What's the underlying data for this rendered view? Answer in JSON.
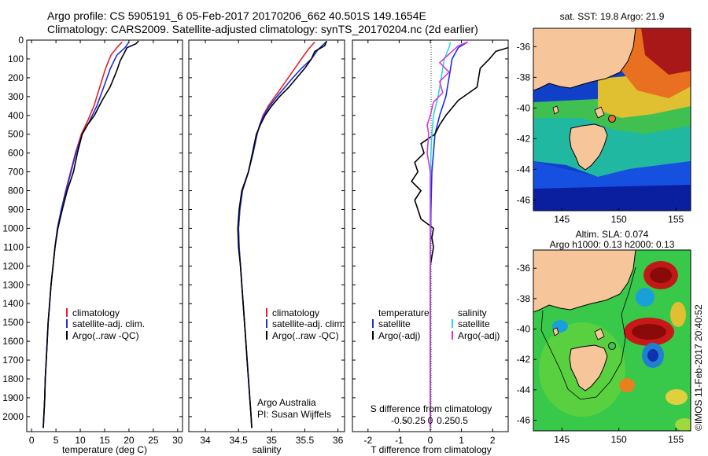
{
  "title_line1": "Argo profile: CS 5905191_6 05-Feb-2017 20170206_662 40.501S 149.1654E",
  "title_line2": "Climatology: CARS2009. Satellite-adjusted climatology: synTS_20170204.nc (2d earlier)",
  "colors": {
    "climatology": "#e8202a",
    "satellite": "#1a2fe0",
    "argo": "#000000",
    "salinity_sat": "#22dede",
    "salinity_argo": "#e030e0"
  },
  "chart_data": [
    {
      "type": "line",
      "name": "temperature-profile",
      "xlabel": "temperature (deg C)",
      "xlim": [
        -1,
        31
      ],
      "ylim": [
        0,
        2080
      ],
      "xticks": [
        0,
        5,
        10,
        15,
        20,
        25,
        30
      ],
      "yticks": [
        0,
        100,
        200,
        300,
        400,
        500,
        600,
        700,
        800,
        900,
        1000,
        1100,
        1200,
        1300,
        1400,
        1500,
        1600,
        1700,
        1800,
        1900,
        2000
      ],
      "legend": [
        "climatology",
        "satellite-adj. clim.",
        "Argo(..raw -QC)"
      ],
      "series": [
        {
          "name": "climatology",
          "color_key": "climatology",
          "points": [
            [
              18.6,
              10
            ],
            [
              17.5,
              40
            ],
            [
              16.3,
              80
            ],
            [
              15.2,
              150
            ],
            [
              14.0,
              250
            ],
            [
              12.8,
              350
            ],
            [
              11.5,
              430
            ],
            [
              10.2,
              500
            ],
            [
              9.0,
              600
            ],
            [
              8.0,
              700
            ],
            [
              7.0,
              800
            ],
            [
              6.1,
              900
            ],
            [
              5.3,
              1000
            ],
            [
              4.8,
              1100
            ],
            [
              4.4,
              1200
            ],
            [
              4.0,
              1300
            ],
            [
              3.7,
              1400
            ],
            [
              3.4,
              1500
            ],
            [
              3.2,
              1600
            ],
            [
              3.0,
              1700
            ],
            [
              2.8,
              1800
            ],
            [
              2.7,
              1900
            ],
            [
              2.5,
              2000
            ],
            [
              2.4,
              2060
            ]
          ]
        },
        {
          "name": "satellite",
          "color_key": "satellite",
          "points": [
            [
              20.0,
              10
            ],
            [
              19.2,
              40
            ],
            [
              17.5,
              80
            ],
            [
              16.2,
              150
            ],
            [
              14.8,
              250
            ],
            [
              13.4,
              350
            ],
            [
              11.9,
              430
            ],
            [
              10.4,
              500
            ],
            [
              9.1,
              600
            ],
            [
              8.1,
              700
            ],
            [
              7.1,
              800
            ],
            [
              6.1,
              900
            ],
            [
              5.3,
              1000
            ],
            [
              4.8,
              1100
            ],
            [
              4.4,
              1200
            ],
            [
              4.0,
              1300
            ],
            [
              3.7,
              1400
            ],
            [
              3.4,
              1500
            ],
            [
              3.2,
              1600
            ],
            [
              3.0,
              1700
            ],
            [
              2.8,
              1800
            ],
            [
              2.7,
              1900
            ],
            [
              2.5,
              2000
            ],
            [
              2.4,
              2060
            ]
          ]
        },
        {
          "name": "argo",
          "color_key": "argo",
          "points": [
            [
              22.0,
              5
            ],
            [
              21.4,
              20
            ],
            [
              19.6,
              40
            ],
            [
              18.8,
              80
            ],
            [
              18.2,
              110
            ],
            [
              17.4,
              170
            ],
            [
              16.1,
              250
            ],
            [
              14.5,
              320
            ],
            [
              12.9,
              400
            ],
            [
              11.5,
              450
            ],
            [
              10.4,
              500
            ],
            [
              9.4,
              600
            ],
            [
              8.6,
              700
            ],
            [
              7.3,
              800
            ],
            [
              6.3,
              900
            ],
            [
              5.4,
              1000
            ],
            [
              4.8,
              1100
            ],
            [
              4.4,
              1200
            ],
            [
              4.0,
              1300
            ],
            [
              3.7,
              1400
            ],
            [
              3.4,
              1500
            ],
            [
              3.2,
              1600
            ],
            [
              3.0,
              1700
            ],
            [
              2.8,
              1800
            ],
            [
              2.7,
              1900
            ],
            [
              2.5,
              2000
            ],
            [
              2.4,
              2060
            ]
          ]
        }
      ]
    },
    {
      "type": "line",
      "name": "salinity-profile",
      "xlabel": "salinity",
      "xlim": [
        33.75,
        36.1
      ],
      "ylim": [
        0,
        2080
      ],
      "xticks": [
        34,
        34.5,
        35,
        35.5,
        36
      ],
      "legend": [
        "climatology",
        "satellite-adj. clim.",
        "Argo(..raw -QC)"
      ],
      "annotation_line1": "Argo Australia",
      "annotation_line2": "PI: Susan Wijffels",
      "series": [
        {
          "name": "climatology",
          "color_key": "climatology",
          "points": [
            [
              35.65,
              10
            ],
            [
              35.55,
              50
            ],
            [
              35.45,
              100
            ],
            [
              35.35,
              150
            ],
            [
              35.25,
              200
            ],
            [
              35.15,
              250
            ],
            [
              35.05,
              300
            ],
            [
              34.95,
              350
            ],
            [
              34.87,
              400
            ],
            [
              34.82,
              450
            ],
            [
              34.78,
              500
            ],
            [
              34.72,
              600
            ],
            [
              34.65,
              700
            ],
            [
              34.56,
              800
            ],
            [
              34.52,
              900
            ],
            [
              34.5,
              1000
            ],
            [
              34.51,
              1100
            ],
            [
              34.53,
              1200
            ],
            [
              34.55,
              1300
            ],
            [
              34.57,
              1400
            ],
            [
              34.59,
              1500
            ],
            [
              34.61,
              1600
            ],
            [
              34.63,
              1700
            ],
            [
              34.65,
              1800
            ],
            [
              34.67,
              1900
            ],
            [
              34.69,
              2000
            ],
            [
              34.7,
              2060
            ]
          ]
        },
        {
          "name": "satellite",
          "color_key": "satellite",
          "points": [
            [
              35.82,
              10
            ],
            [
              35.7,
              50
            ],
            [
              35.6,
              100
            ],
            [
              35.45,
              150
            ],
            [
              35.32,
              200
            ],
            [
              35.2,
              250
            ],
            [
              35.08,
              300
            ],
            [
              34.97,
              350
            ],
            [
              34.88,
              400
            ],
            [
              34.82,
              450
            ],
            [
              34.78,
              500
            ],
            [
              34.72,
              600
            ],
            [
              34.65,
              700
            ],
            [
              34.56,
              800
            ],
            [
              34.52,
              900
            ],
            [
              34.5,
              1000
            ],
            [
              34.51,
              1100
            ],
            [
              34.53,
              1200
            ],
            [
              34.55,
              1300
            ],
            [
              34.57,
              1400
            ],
            [
              34.59,
              1500
            ],
            [
              34.61,
              1600
            ],
            [
              34.63,
              1700
            ],
            [
              34.65,
              1800
            ],
            [
              34.67,
              1900
            ],
            [
              34.69,
              2000
            ],
            [
              34.7,
              2060
            ]
          ]
        },
        {
          "name": "argo",
          "color_key": "argo",
          "points": [
            [
              35.83,
              5
            ],
            [
              35.8,
              30
            ],
            [
              35.65,
              60
            ],
            [
              35.6,
              100
            ],
            [
              35.5,
              150
            ],
            [
              35.38,
              200
            ],
            [
              35.26,
              250
            ],
            [
              35.12,
              300
            ],
            [
              35.0,
              350
            ],
            [
              34.9,
              400
            ],
            [
              34.83,
              450
            ],
            [
              34.77,
              500
            ],
            [
              34.71,
              600
            ],
            [
              34.65,
              700
            ],
            [
              34.55,
              800
            ],
            [
              34.51,
              900
            ],
            [
              34.49,
              1000
            ],
            [
              34.5,
              1100
            ],
            [
              34.53,
              1200
            ],
            [
              34.55,
              1300
            ],
            [
              34.57,
              1400
            ],
            [
              34.59,
              1500
            ],
            [
              34.61,
              1600
            ],
            [
              34.63,
              1700
            ],
            [
              34.65,
              1800
            ],
            [
              34.67,
              1900
            ],
            [
              34.69,
              2000
            ],
            [
              34.7,
              2060
            ]
          ]
        }
      ]
    },
    {
      "type": "line",
      "name": "difference-profile",
      "xlabel": "T difference from climatology",
      "top_xlabel": "S difference from climatology",
      "xlim": [
        -2.5,
        2.5
      ],
      "ylim": [
        0,
        2080
      ],
      "xticks": [
        -2,
        -1,
        0,
        1,
        2
      ],
      "s_ticks": [
        "-0.5",
        "-0.25",
        "0",
        "0.25",
        "0.5"
      ],
      "s_tick_values": [
        -1,
        -0.5,
        0,
        0.5,
        1
      ],
      "legend_left": {
        "title": "temperature",
        "items": [
          "satellite",
          "Argo(-adj)"
        ]
      },
      "legend_right": {
        "title": "salinity",
        "items": [
          "satellite",
          "Argo(-adj)"
        ]
      },
      "series": [
        {
          "name": "T satellite",
          "color_key": "satellite",
          "points": [
            [
              1.2,
              10
            ],
            [
              0.9,
              40
            ],
            [
              0.7,
              100
            ],
            [
              0.6,
              200
            ],
            [
              0.5,
              300
            ],
            [
              0.3,
              400
            ],
            [
              0.15,
              500
            ],
            [
              0.1,
              600
            ],
            [
              0.05,
              700
            ],
            [
              0.02,
              900
            ],
            [
              0.0,
              1200
            ],
            [
              0.0,
              2060
            ]
          ]
        },
        {
          "name": "T Argo(-adj)",
          "color_key": "argo",
          "points": [
            [
              2.5,
              40
            ],
            [
              2.1,
              60
            ],
            [
              1.9,
              100
            ],
            [
              1.6,
              150
            ],
            [
              1.5,
              250
            ],
            [
              0.9,
              320
            ],
            [
              0.5,
              400
            ],
            [
              0.3,
              450
            ],
            [
              0.15,
              500
            ],
            [
              -0.3,
              550
            ],
            [
              -0.2,
              600
            ],
            [
              -0.5,
              650
            ],
            [
              -0.4,
              700
            ],
            [
              -0.6,
              750
            ],
            [
              -0.3,
              800
            ],
            [
              -0.5,
              850
            ],
            [
              -0.4,
              900
            ],
            [
              -0.3,
              950
            ],
            [
              0.1,
              1000
            ],
            [
              0.05,
              1050
            ],
            [
              0.1,
              1100
            ],
            [
              0.0,
              1200
            ],
            [
              0.0,
              2060
            ]
          ]
        },
        {
          "name": "S satellite",
          "color_key": "salinity_sat",
          "points": [
            [
              0.65,
              10
            ],
            [
              0.6,
              40
            ],
            [
              0.45,
              100
            ],
            [
              0.35,
              200
            ],
            [
              0.25,
              300
            ],
            [
              0.1,
              400
            ],
            [
              0.05,
              500
            ],
            [
              0.02,
              600
            ],
            [
              0.0,
              800
            ],
            [
              0.0,
              2060
            ]
          ]
        },
        {
          "name": "S Argo(-adj)",
          "color_key": "salinity_argo",
          "points": [
            [
              1.2,
              10
            ],
            [
              0.9,
              30
            ],
            [
              0.7,
              60
            ],
            [
              0.5,
              90
            ],
            [
              0.3,
              120
            ],
            [
              0.6,
              170
            ],
            [
              0.3,
              220
            ],
            [
              0.4,
              280
            ],
            [
              0.1,
              330
            ],
            [
              0.0,
              400
            ],
            [
              -0.1,
              450
            ],
            [
              -0.05,
              500
            ],
            [
              -0.1,
              600
            ],
            [
              0.0,
              700
            ],
            [
              0.0,
              2060
            ]
          ]
        }
      ]
    }
  ],
  "maps": [
    {
      "name": "sst-map",
      "title": "sat. SST: 19.8  Argo: 21.9",
      "xticks": [
        "145",
        "150",
        "155"
      ],
      "yticks": [
        "-36",
        "-38",
        "-40",
        "-42",
        "-44",
        "-46"
      ]
    },
    {
      "name": "sla-map",
      "title_line1": "Altim. SLA: 0.074",
      "title_line2": "Argo h1000: 0.13  h2000: 0.13",
      "xticks": [
        "145",
        "150",
        "155"
      ],
      "yticks": [
        "-36",
        "-38",
        "-40",
        "-42",
        "-44",
        "-46"
      ]
    }
  ],
  "credit": "©IMOS 11-Feb-2017 20:40:52"
}
